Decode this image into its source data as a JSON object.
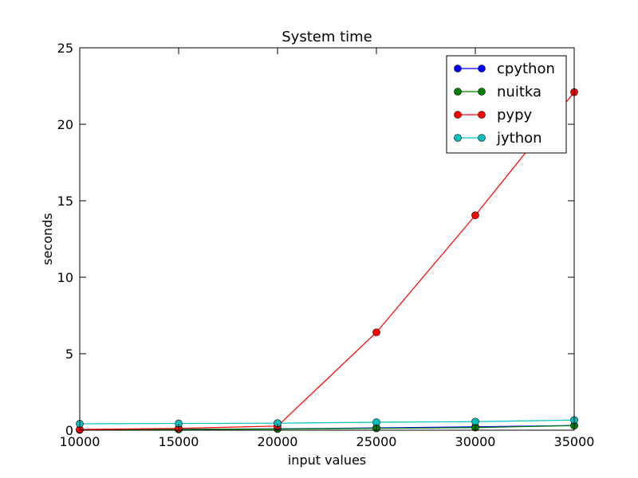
{
  "chart_data": {
    "type": "line",
    "title": "System time",
    "xlabel": "input values",
    "ylabel": "seconds",
    "xlim": [
      10000,
      35000
    ],
    "ylim": [
      0,
      25
    ],
    "x": [
      10000,
      15000,
      20000,
      25000,
      30000,
      35000
    ],
    "x_ticks": [
      "10000",
      "15000",
      "20000",
      "25000",
      "30000",
      "35000"
    ],
    "y_ticks": [
      "0",
      "5",
      "10",
      "15",
      "20",
      "25"
    ],
    "grid": false,
    "legend_position": "top-right",
    "series": [
      {
        "name": "cpython",
        "color": "#0000ff",
        "values": [
          0.03,
          0.06,
          0.09,
          0.15,
          0.22,
          0.31
        ]
      },
      {
        "name": "nuitka",
        "color": "#008000",
        "values": [
          0.02,
          0.05,
          0.08,
          0.12,
          0.17,
          0.3
        ]
      },
      {
        "name": "pypy",
        "color": "#ff0000",
        "values": [
          0.05,
          0.12,
          0.27,
          6.4,
          14.05,
          22.1
        ]
      },
      {
        "name": "jython",
        "color": "#00bfbf",
        "values": [
          0.42,
          0.44,
          0.46,
          0.52,
          0.56,
          0.66
        ]
      }
    ]
  }
}
